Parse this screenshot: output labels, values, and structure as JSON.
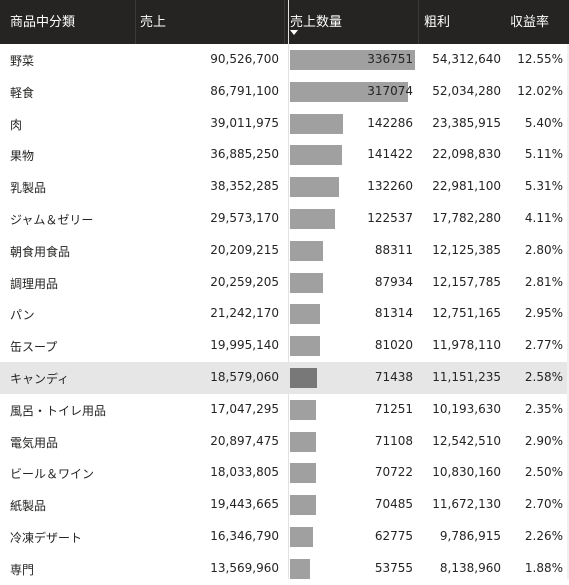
{
  "header": {
    "category": "商品中分類",
    "sales": "売上",
    "quantity": "売上数量",
    "profit": "粗利",
    "rate": "収益率"
  },
  "max_quantity": 336751,
  "selected_row": "キャンディ",
  "rows": [
    {
      "category": "野菜",
      "sales": "90,526,700",
      "quantity": "336751",
      "quantity_value": 336751,
      "profit": "54,312,640",
      "rate": "12.55%"
    },
    {
      "category": "軽食",
      "sales": "86,791,100",
      "quantity": "317074",
      "quantity_value": 317074,
      "profit": "52,034,280",
      "rate": "12.02%"
    },
    {
      "category": "肉",
      "sales": "39,011,975",
      "quantity": "142286",
      "quantity_value": 142286,
      "profit": "23,385,915",
      "rate": "5.40%"
    },
    {
      "category": "果物",
      "sales": "36,885,250",
      "quantity": "141422",
      "quantity_value": 141422,
      "profit": "22,098,830",
      "rate": "5.11%"
    },
    {
      "category": "乳製品",
      "sales": "38,352,285",
      "quantity": "132260",
      "quantity_value": 132260,
      "profit": "22,981,100",
      "rate": "5.31%"
    },
    {
      "category": "ジャム＆ゼリー",
      "sales": "29,573,170",
      "quantity": "122537",
      "quantity_value": 122537,
      "profit": "17,782,280",
      "rate": "4.11%"
    },
    {
      "category": "朝食用食品",
      "sales": "20,209,215",
      "quantity": "88311",
      "quantity_value": 88311,
      "profit": "12,125,385",
      "rate": "2.80%"
    },
    {
      "category": "調理用品",
      "sales": "20,259,205",
      "quantity": "87934",
      "quantity_value": 87934,
      "profit": "12,157,785",
      "rate": "2.81%"
    },
    {
      "category": "パン",
      "sales": "21,242,170",
      "quantity": "81314",
      "quantity_value": 81314,
      "profit": "12,751,165",
      "rate": "2.95%"
    },
    {
      "category": "缶スープ",
      "sales": "19,995,140",
      "quantity": "81020",
      "quantity_value": 81020,
      "profit": "11,978,110",
      "rate": "2.77%"
    },
    {
      "category": "キャンディ",
      "sales": "18,579,060",
      "quantity": "71438",
      "quantity_value": 71438,
      "profit": "11,151,235",
      "rate": "2.58%"
    },
    {
      "category": "風呂・トイレ用品",
      "sales": "17,047,295",
      "quantity": "71251",
      "quantity_value": 71251,
      "profit": "10,193,630",
      "rate": "2.35%"
    },
    {
      "category": "電気用品",
      "sales": "20,897,475",
      "quantity": "71108",
      "quantity_value": 71108,
      "profit": "12,542,510",
      "rate": "2.90%"
    },
    {
      "category": "ビール＆ワイン",
      "sales": "18,033,805",
      "quantity": "70722",
      "quantity_value": 70722,
      "profit": "10,830,160",
      "rate": "2.50%"
    },
    {
      "category": "紙製品",
      "sales": "19,443,665",
      "quantity": "70485",
      "quantity_value": 70485,
      "profit": "11,672,130",
      "rate": "2.70%"
    },
    {
      "category": "冷凍デザート",
      "sales": "16,346,790",
      "quantity": "62775",
      "quantity_value": 62775,
      "profit": "9,786,915",
      "rate": "2.26%"
    },
    {
      "category": "専門",
      "sales": "13,569,960",
      "quantity": "53755",
      "quantity_value": 53755,
      "profit": "8,138,960",
      "rate": "1.88%"
    }
  ]
}
